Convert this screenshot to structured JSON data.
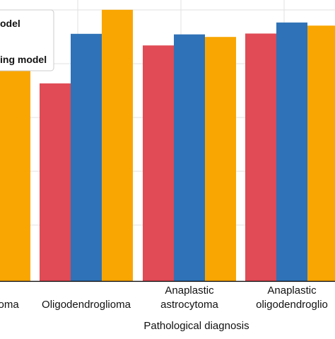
{
  "chart_data": {
    "type": "bar",
    "xlabel": "Pathological diagnosis",
    "ylabel": "",
    "title": "",
    "grid": true,
    "legend_position": "top-left",
    "categories": [
      [
        "Astrocytoma"
      ],
      [
        "Oligodendroglioma"
      ],
      [
        "Anaplastic",
        "astrocytoma"
      ],
      [
        "Anaplastic",
        "oligodendroglioma"
      ]
    ],
    "category_display": [
      [
        "toma"
      ],
      [
        "Oligodendroglioma"
      ],
      [
        "Anaplastic",
        "astrocytoma"
      ],
      [
        "Anaplastic",
        "oligodendroglio"
      ]
    ],
    "series": [
      {
        "color": "#e04b55",
        "values": [
          null,
          0.698,
          0.832,
          0.874
        ]
      },
      {
        "color": "#2f72b7",
        "values": [
          null,
          0.873,
          0.871,
          0.913
        ]
      },
      {
        "color": "#f9a602",
        "values": [
          0.84,
          0.958,
          0.862,
          0.902
        ]
      }
    ],
    "legend": [
      {
        "label": "odel",
        "color": "#e04b55"
      },
      {
        "label": "",
        "color": "#2f72b7"
      },
      {
        "label": "ing model",
        "color": "#f9a602"
      }
    ],
    "ylim": [
      0,
      1.0
    ]
  }
}
